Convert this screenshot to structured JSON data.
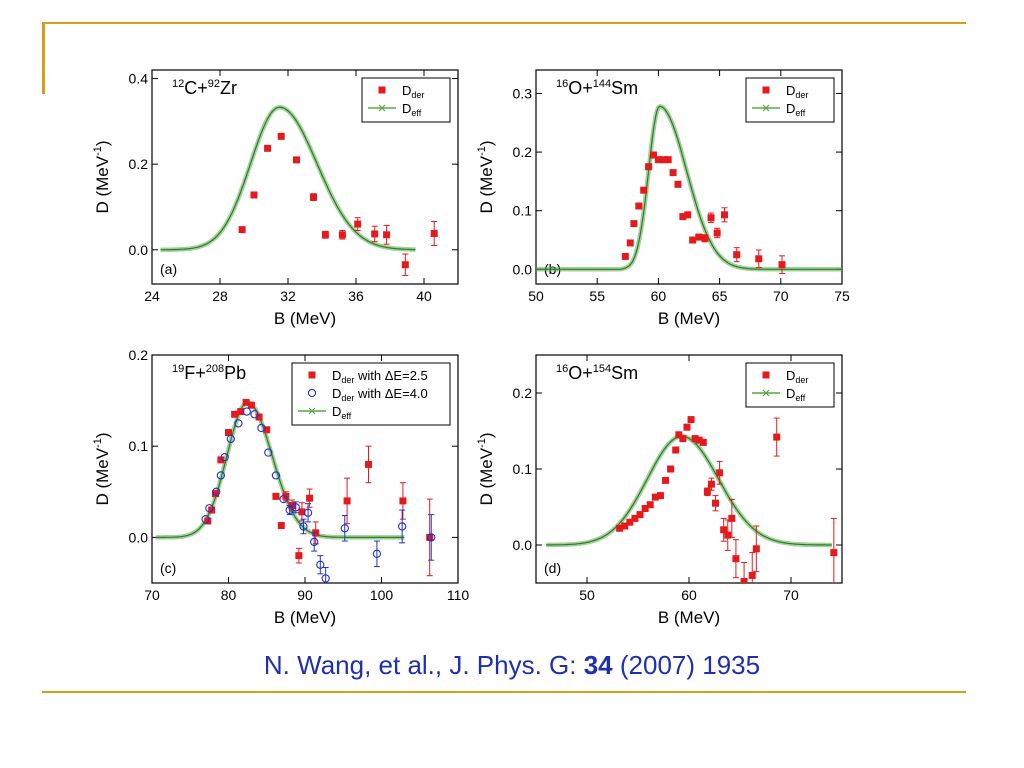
{
  "citation": {
    "authors": "N. Wang, et al., J. Phys. G: ",
    "volume": "34",
    "rest": " (2007) 1935"
  },
  "colors": {
    "der": "#e41a1c",
    "der2": "#2233cc",
    "eff": "#55aa44",
    "rule": "#D4A017",
    "citation": "#1f2fb0"
  },
  "chart_data": [
    {
      "type": "scatter",
      "panel_label": "(a)",
      "reaction": {
        "a": "12",
        "p": "C+",
        "b": "92",
        "t": "Zr"
      },
      "xlabel": "B (MeV)",
      "ylabel_main": "D (MeV",
      "ylabel_sup": "-1",
      "ylabel_end": ")",
      "xlim": [
        24,
        42
      ],
      "ylim": [
        -0.08,
        0.42
      ],
      "xticks": [
        24,
        28,
        32,
        36,
        40
      ],
      "xtick_labels": [
        "24",
        "28",
        "32",
        "36",
        "40"
      ],
      "yticks": [
        0.0,
        0.2,
        0.4
      ],
      "ytick_labels": [
        "0.0",
        "0.2",
        "0.4"
      ],
      "legend_position": "top-right",
      "legend": [
        {
          "marker": "square",
          "main": "D",
          "sub": "der",
          "tail": ""
        },
        {
          "marker": "line",
          "main": "D",
          "sub": "eff",
          "tail": ""
        }
      ],
      "series": [
        {
          "name": "Dder",
          "marker": "square",
          "color": "#e41a1c",
          "points": [
            [
              29.3,
              0.047,
              0.004
            ],
            [
              30.0,
              0.128,
              0.006
            ],
            [
              30.8,
              0.237,
              0.006
            ],
            [
              31.6,
              0.265,
              0.006
            ],
            [
              32.5,
              0.21,
              0.006
            ],
            [
              33.5,
              0.123,
              0.008
            ],
            [
              34.2,
              0.035,
              0.008
            ],
            [
              35.2,
              0.035,
              0.01
            ],
            [
              36.1,
              0.06,
              0.015
            ],
            [
              37.1,
              0.037,
              0.018
            ],
            [
              37.8,
              0.035,
              0.022
            ],
            [
              38.9,
              -0.035,
              0.025
            ],
            [
              40.6,
              0.038,
              0.028
            ]
          ]
        }
      ],
      "curves": [
        {
          "name": "Deff",
          "shape": "gauss",
          "x0": 24.5,
          "x1": 39.5,
          "mu": 31.5,
          "sl": 1.7,
          "sr": 2.2,
          "amp": 0.333
        }
      ]
    },
    {
      "type": "scatter",
      "panel_label": "(b)",
      "reaction": {
        "a": "16",
        "p": "O+",
        "b": "144",
        "t": "Sm"
      },
      "xlabel": "B (MeV)",
      "ylabel_main": "D (MeV",
      "ylabel_sup": "-1",
      "ylabel_end": ")",
      "xlim": [
        50,
        75
      ],
      "ylim": [
        -0.025,
        0.34
      ],
      "xticks": [
        50,
        55,
        60,
        65,
        70,
        75
      ],
      "xtick_labels": [
        "50",
        "55",
        "60",
        "65",
        "70",
        "75"
      ],
      "yticks": [
        0.0,
        0.1,
        0.2,
        0.3
      ],
      "ytick_labels": [
        "0.0",
        "0.1",
        "0.2",
        "0.3"
      ],
      "legend_position": "top-right",
      "legend": [
        {
          "marker": "square",
          "main": "D",
          "sub": "der",
          "tail": ""
        },
        {
          "marker": "line",
          "main": "D",
          "sub": "eff",
          "tail": ""
        }
      ],
      "series": [
        {
          "name": "Dder",
          "marker": "square",
          "color": "#e41a1c",
          "points": [
            [
              57.3,
              0.022,
              0
            ],
            [
              57.7,
              0.045,
              0
            ],
            [
              58.0,
              0.078,
              0
            ],
            [
              58.4,
              0.108,
              0
            ],
            [
              58.8,
              0.135,
              0
            ],
            [
              59.2,
              0.175,
              0
            ],
            [
              59.6,
              0.195,
              0
            ],
            [
              60.0,
              0.187,
              0
            ],
            [
              60.4,
              0.187,
              0
            ],
            [
              60.8,
              0.187,
              0
            ],
            [
              61.2,
              0.165,
              0
            ],
            [
              61.6,
              0.145,
              0
            ],
            [
              62.0,
              0.09,
              0
            ],
            [
              62.4,
              0.093,
              0
            ],
            [
              62.8,
              0.05,
              0
            ],
            [
              63.3,
              0.055,
              0.005
            ],
            [
              63.8,
              0.053,
              0.006
            ],
            [
              64.3,
              0.088,
              0.008
            ],
            [
              64.8,
              0.062,
              0.008
            ],
            [
              65.4,
              0.093,
              0.012
            ],
            [
              66.4,
              0.025,
              0.012
            ],
            [
              68.2,
              0.018,
              0.015
            ],
            [
              70.1,
              0.008,
              0.015
            ]
          ]
        }
      ],
      "curves": [
        {
          "name": "Deff",
          "shape": "asym",
          "x0": 50,
          "x1": 75,
          "mu": 60.1,
          "sl": 0.9,
          "sr": 2.2,
          "amp": 0.278,
          "xs": 57.0
        }
      ]
    },
    {
      "type": "scatter",
      "panel_label": "(c)",
      "reaction": {
        "a": "19",
        "p": "F+",
        "b": "208",
        "t": "Pb"
      },
      "xlabel": "B (MeV)",
      "ylabel_main": "D (MeV",
      "ylabel_sup": "-1",
      "ylabel_end": ")",
      "xlim": [
        70,
        110
      ],
      "ylim": [
        -0.05,
        0.2
      ],
      "xticks": [
        70,
        80,
        90,
        100,
        110
      ],
      "xtick_labels": [
        "70",
        "80",
        "90",
        "100",
        "110"
      ],
      "yticks": [
        0.0,
        0.1,
        0.2
      ],
      "ytick_labels": [
        "0.0",
        "0.1",
        "0.2"
      ],
      "legend_position": "top-right",
      "legend": [
        {
          "marker": "square",
          "main": "D",
          "sub": "der",
          "tail": " with ΔE=2.5"
        },
        {
          "marker": "circle",
          "main": "D",
          "sub": "der",
          "tail": " with ΔE=4.0"
        },
        {
          "marker": "line",
          "main": "D",
          "sub": "eff",
          "tail": ""
        }
      ],
      "series": [
        {
          "name": "Dder with ΔE=2.5",
          "marker": "square",
          "color": "#e41a1c",
          "points": [
            [
              77.3,
              0.018,
              0
            ],
            [
              77.8,
              0.03,
              0
            ],
            [
              78.3,
              0.048,
              0
            ],
            [
              79.0,
              0.085,
              0
            ],
            [
              80.0,
              0.115,
              0
            ],
            [
              80.8,
              0.135,
              0
            ],
            [
              81.6,
              0.138,
              0
            ],
            [
              82.3,
              0.148,
              0
            ],
            [
              83.0,
              0.145,
              0
            ],
            [
              84.0,
              0.132,
              0
            ],
            [
              85.0,
              0.118,
              0
            ],
            [
              86.2,
              0.045,
              0
            ],
            [
              86.9,
              0.013,
              0
            ],
            [
              87.5,
              0.045,
              0.005
            ],
            [
              88.3,
              0.035,
              0.006
            ],
            [
              89.2,
              -0.02,
              0.008
            ],
            [
              89.6,
              0.028,
              0.01
            ],
            [
              90.6,
              0.043,
              0.01
            ],
            [
              91.4,
              0.005,
              0.012
            ],
            [
              95.5,
              0.04,
              0.025
            ],
            [
              98.3,
              0.08,
              0.02
            ],
            [
              102.8,
              0.04,
              0.02
            ],
            [
              106.3,
              0.0,
              0.042
            ]
          ]
        },
        {
          "name": "Dder with ΔE=4.0",
          "marker": "circle",
          "color": "#2233cc",
          "points": [
            [
              77.0,
              0.02,
              0
            ],
            [
              77.5,
              0.032,
              0
            ],
            [
              78.4,
              0.05,
              0
            ],
            [
              79.0,
              0.068,
              0
            ],
            [
              79.5,
              0.088,
              0
            ],
            [
              80.3,
              0.108,
              0
            ],
            [
              81.3,
              0.125,
              0
            ],
            [
              82.4,
              0.138,
              0
            ],
            [
              83.4,
              0.135,
              0
            ],
            [
              84.3,
              0.12,
              0
            ],
            [
              85.2,
              0.093,
              0
            ],
            [
              86.2,
              0.068,
              0
            ],
            [
              87.2,
              0.042,
              0
            ],
            [
              88.0,
              0.03,
              0.005
            ],
            [
              88.8,
              0.033,
              0.006
            ],
            [
              89.8,
              0.012,
              0.008
            ],
            [
              90.4,
              0.027,
              0.01
            ],
            [
              91.2,
              -0.005,
              0.01
            ],
            [
              92.0,
              -0.03,
              0.01
            ],
            [
              92.7,
              -0.045,
              0.012
            ],
            [
              95.2,
              0.01,
              0.014
            ],
            [
              99.4,
              -0.018,
              0.014
            ],
            [
              102.7,
              0.012,
              0.018
            ],
            [
              106.5,
              0.0,
              0.025
            ]
          ]
        }
      ],
      "curves": [
        {
          "name": "Deff",
          "shape": "gauss",
          "x0": 70.5,
          "x1": 103,
          "mu": 82.5,
          "sl": 2.7,
          "sr": 3.2,
          "amp": 0.148
        }
      ]
    },
    {
      "type": "scatter",
      "panel_label": "(d)",
      "reaction": {
        "a": "16",
        "p": "O+",
        "b": "154",
        "t": "Sm"
      },
      "xlabel": "B (MeV)",
      "ylabel_main": "D (MeV",
      "ylabel_sup": "-1",
      "ylabel_end": ")",
      "xlim": [
        45,
        75
      ],
      "ylim": [
        -0.05,
        0.25
      ],
      "xticks": [
        50,
        60,
        70
      ],
      "xtick_labels": [
        "50",
        "60",
        "70"
      ],
      "yticks": [
        0.0,
        0.1,
        0.2
      ],
      "ytick_labels": [
        "0.0",
        "0.1",
        "0.2"
      ],
      "legend_position": "top-right",
      "legend": [
        {
          "marker": "square",
          "main": "D",
          "sub": "der",
          "tail": ""
        },
        {
          "marker": "line",
          "main": "D",
          "sub": "eff",
          "tail": ""
        }
      ],
      "series": [
        {
          "name": "Dder",
          "marker": "square",
          "color": "#e41a1c",
          "points": [
            [
              53.2,
              0.022,
              0
            ],
            [
              53.7,
              0.025,
              0
            ],
            [
              54.2,
              0.03,
              0
            ],
            [
              54.7,
              0.035,
              0
            ],
            [
              55.2,
              0.04,
              0
            ],
            [
              55.7,
              0.048,
              0
            ],
            [
              56.2,
              0.053,
              0
            ],
            [
              56.7,
              0.063,
              0
            ],
            [
              57.2,
              0.065,
              0
            ],
            [
              57.7,
              0.085,
              0
            ],
            [
              58.2,
              0.1,
              0
            ],
            [
              58.7,
              0.125,
              0
            ],
            [
              59.0,
              0.145,
              0
            ],
            [
              59.4,
              0.14,
              0
            ],
            [
              59.8,
              0.155,
              0
            ],
            [
              60.2,
              0.165,
              0
            ],
            [
              60.6,
              0.14,
              0
            ],
            [
              61.0,
              0.138,
              0
            ],
            [
              61.4,
              0.135,
              0
            ],
            [
              61.8,
              0.07,
              0.005
            ],
            [
              62.2,
              0.08,
              0.008
            ],
            [
              62.6,
              0.055,
              0.01
            ],
            [
              63.0,
              0.095,
              0.015
            ],
            [
              63.4,
              0.02,
              0.015
            ],
            [
              63.8,
              0.013,
              0.02
            ],
            [
              64.2,
              0.035,
              0.025
            ],
            [
              64.6,
              -0.018,
              0.025
            ],
            [
              65.4,
              -0.048,
              0.025
            ],
            [
              66.2,
              -0.04,
              0.03
            ],
            [
              66.6,
              -0.005,
              0.03
            ],
            [
              68.6,
              0.142,
              0.025
            ],
            [
              74.2,
              -0.01,
              0.045
            ]
          ]
        }
      ],
      "curves": [
        {
          "name": "Deff",
          "shape": "gauss",
          "x0": 46,
          "x1": 74,
          "mu": 59.3,
          "sl": 3.4,
          "sr": 3.6,
          "amp": 0.143
        }
      ]
    }
  ]
}
